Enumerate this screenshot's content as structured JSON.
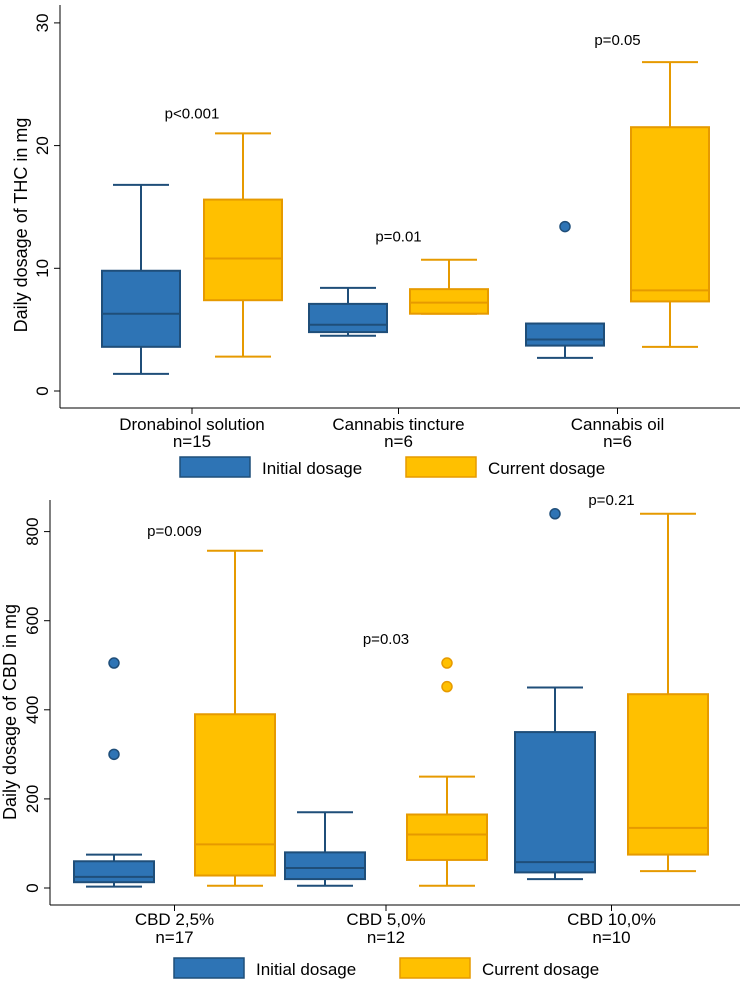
{
  "colors": {
    "initial_fill": "#2e74b5",
    "initial_stroke": "#1f4e79",
    "current_fill": "#ffc000",
    "current_stroke": "#e69a00"
  },
  "chart_data": [
    {
      "type": "box",
      "ylabel": "Daily dosage of THC in mg",
      "ylim": [
        0,
        30
      ],
      "yticks": [
        0,
        10,
        20,
        30
      ],
      "categories": [
        {
          "label": "Dronabinol solution",
          "n": "n=15"
        },
        {
          "label": "Cannabis tincture",
          "n": "n=6"
        },
        {
          "label": "Cannabis oil",
          "n": "n=6"
        }
      ],
      "legend": [
        "Initial dosage",
        "Current dosage"
      ],
      "series": [
        {
          "name": "Initial dosage",
          "boxes": [
            {
              "min": 1.4,
              "q1": 3.6,
              "median": 6.3,
              "q3": 9.8,
              "max": 16.8,
              "outliers": []
            },
            {
              "min": 4.5,
              "q1": 4.8,
              "median": 5.4,
              "q3": 7.1,
              "max": 8.4,
              "outliers": []
            },
            {
              "min": 2.7,
              "q1": 3.7,
              "median": 4.2,
              "q3": 5.5,
              "max": 5.5,
              "outliers": [
                13.4
              ]
            }
          ]
        },
        {
          "name": "Current dosage",
          "boxes": [
            {
              "min": 2.8,
              "q1": 7.4,
              "median": 10.8,
              "q3": 15.6,
              "max": 21.0,
              "outliers": []
            },
            {
              "min": 6.3,
              "q1": 6.3,
              "median": 7.2,
              "q3": 8.3,
              "max": 10.7,
              "outliers": []
            },
            {
              "min": 3.6,
              "q1": 7.3,
              "median": 8.2,
              "q3": 21.5,
              "max": 26.8,
              "outliers": []
            }
          ]
        }
      ],
      "annotations": [
        {
          "text": "p<0.001",
          "category": 0,
          "y": 22.2
        },
        {
          "text": "p=0.01",
          "category": 1,
          "y": 12.2
        },
        {
          "text": "p=0.05",
          "category": 2,
          "y": 28.2
        }
      ]
    },
    {
      "type": "box",
      "ylabel": "Daily dosage of CBD in mg",
      "ylim": [
        0,
        880
      ],
      "yticks": [
        0,
        200,
        400,
        600,
        800
      ],
      "categories": [
        {
          "label": "CBD 2,5%",
          "n": "n=17"
        },
        {
          "label": "CBD 5,0%",
          "n": "n=12"
        },
        {
          "label": "CBD 10,0%",
          "n": "n=10"
        }
      ],
      "legend": [
        "Initial dosage",
        "Current dosage"
      ],
      "series": [
        {
          "name": "Initial dosage",
          "boxes": [
            {
              "min": 3,
              "q1": 13,
              "median": 25,
              "q3": 60,
              "max": 75,
              "outliers": [
                300,
                505
              ]
            },
            {
              "min": 5,
              "q1": 20,
              "median": 45,
              "q3": 80,
              "max": 170,
              "outliers": []
            },
            {
              "min": 20,
              "q1": 35,
              "median": 58,
              "q3": 350,
              "max": 450,
              "outliers": [
                840
              ]
            }
          ]
        },
        {
          "name": "Current dosage",
          "boxes": [
            {
              "min": 5,
              "q1": 28,
              "median": 98,
              "q3": 390,
              "max": 757,
              "outliers": []
            },
            {
              "min": 5,
              "q1": 63,
              "median": 120,
              "q3": 165,
              "max": 250,
              "outliers": [
                452,
                505
              ]
            },
            {
              "min": 38,
              "q1": 75,
              "median": 135,
              "q3": 435,
              "max": 840,
              "outliers": []
            }
          ]
        }
      ],
      "annotations": [
        {
          "text": "p=0.009",
          "category": 0,
          "y": 790
        },
        {
          "text": "p=0.03",
          "category": 1,
          "y": 548
        },
        {
          "text": "p=0.21",
          "category": 2,
          "y": 860
        }
      ]
    }
  ]
}
